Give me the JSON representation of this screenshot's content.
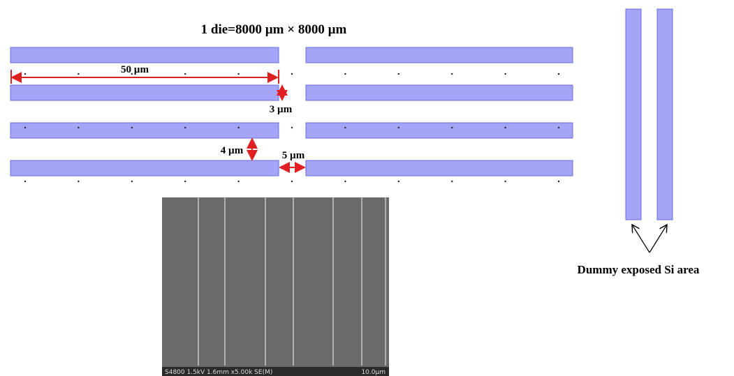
{
  "header": {
    "title": "1 die=8000 µm × 8000 µm"
  },
  "dimensions": {
    "pitch": "50 µm",
    "gap_vertical_small": "3 µm",
    "gap_vertical_large": "4 µm",
    "gap_horizontal": "5 µm"
  },
  "callout": {
    "label": "Dummy exposed Si area"
  },
  "sem_image": {
    "caption": "S4800 1.5kV 1.6mm x5.00k SE(M)",
    "scale": "10.0µm"
  }
}
